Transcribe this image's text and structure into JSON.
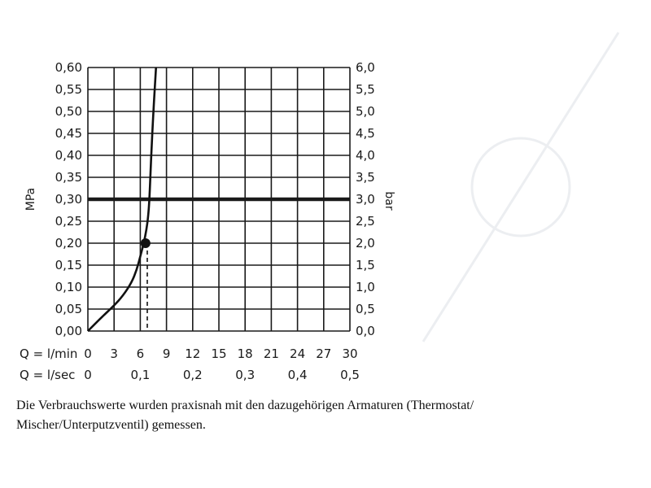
{
  "chart_data": {
    "type": "line",
    "left_axis": {
      "label": "MPa",
      "ticks": [
        "0,00",
        "0,05",
        "0,10",
        "0,15",
        "0,20",
        "0,25",
        "0,30",
        "0,35",
        "0,40",
        "0,45",
        "0,50",
        "0,55",
        "0,60"
      ],
      "range": [
        0,
        0.6
      ]
    },
    "right_axis": {
      "label": "bar",
      "ticks": [
        "0,0",
        "0,5",
        "1,0",
        "1,5",
        "2,0",
        "2,5",
        "3,0",
        "3,5",
        "4,0",
        "4,5",
        "5,0",
        "5,5",
        "6,0"
      ],
      "range": [
        0,
        6.0
      ]
    },
    "x_axis_lmin": {
      "label": "Q = l/min",
      "ticks": [
        "0",
        "3",
        "6",
        "9",
        "12",
        "15",
        "18",
        "21",
        "24",
        "27",
        "30"
      ],
      "range": [
        0,
        30
      ]
    },
    "x_axis_lsec": {
      "label": "Q = l/sec",
      "ticks": [
        "0",
        "0,1",
        "0,2",
        "0,3",
        "0,4",
        "0,5"
      ]
    },
    "grid": true,
    "series": [
      {
        "x": [
          0,
          1.5,
          3,
          4,
          5,
          5.6,
          6.0,
          6.4,
          6.7,
          6.9,
          7.05,
          7.25,
          7.5,
          7.8
        ],
        "y": [
          0,
          0.03,
          0.058,
          0.08,
          0.11,
          0.14,
          0.17,
          0.2,
          0.23,
          0.26,
          0.3,
          0.4,
          0.5,
          0.6
        ]
      }
    ],
    "reference_line": {
      "y": 0.3
    },
    "marker": {
      "x": 6.6,
      "y": 0.2
    },
    "dashed_line": {
      "x": 6.8
    },
    "colors": {
      "curve": "#111111",
      "grid": "#1a1a1a",
      "reference": "#1a1a1a"
    }
  },
  "caption": "Die Verbrauchswerte wurden praxisnah mit den dazugehörigen Armaturen (Thermostat/ Mischer/Unterputzventil) gemessen."
}
